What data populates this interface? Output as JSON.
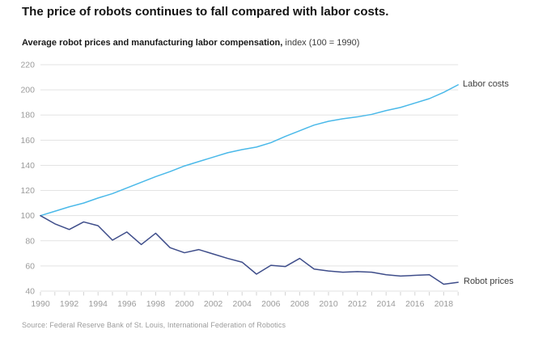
{
  "header": {
    "title": "The price of robots continues to fall compared with labor costs.",
    "subtitle_bold": "Average robot prices and manufacturing labor compensation,",
    "subtitle_regular": " index (100 = 1990)"
  },
  "chart_data": {
    "type": "line",
    "title": "The price of robots continues to fall compared with labor costs.",
    "subtitle": "Average robot prices and manufacturing labor compensation, index (100 = 1990)",
    "x": [
      1990,
      1991,
      1992,
      1993,
      1994,
      1995,
      1996,
      1997,
      1998,
      1999,
      2000,
      2001,
      2002,
      2003,
      2004,
      2005,
      2006,
      2007,
      2008,
      2009,
      2010,
      2011,
      2012,
      2013,
      2014,
      2015,
      2016,
      2017,
      2018,
      2019
    ],
    "series": [
      {
        "name": "Labor costs",
        "color": "#4ab9e9",
        "values": [
          100,
          103.5,
          107,
          110,
          114,
          117.5,
          122,
          126.5,
          131,
          135,
          139.5,
          143,
          146.5,
          150,
          152.5,
          154.5,
          158,
          163,
          167.5,
          172,
          175,
          177,
          178.5,
          180.5,
          183.5,
          186,
          189.5,
          193,
          198,
          204
        ]
      },
      {
        "name": "Robot prices",
        "color": "#3e4d8a",
        "values": [
          100,
          93.5,
          89,
          95,
          92,
          80.5,
          87,
          77,
          86,
          74.5,
          70.5,
          73,
          69.5,
          66,
          63,
          53.5,
          60.5,
          59.5,
          66,
          57.5,
          56,
          55,
          55.5,
          55,
          53,
          52,
          52.5,
          53,
          45.5,
          47
        ]
      }
    ],
    "ylim": [
      40,
      220
    ],
    "yticks": [
      40,
      60,
      80,
      100,
      120,
      140,
      160,
      180,
      200,
      220
    ],
    "xticks_labeled": [
      1990,
      1992,
      1994,
      1996,
      1998,
      2000,
      2002,
      2004,
      2006,
      2008,
      2010,
      2012,
      2014,
      2016,
      2018
    ],
    "grid": "horizontal",
    "legend_position": "line-end-labels",
    "colors": {
      "grid": "#e3e3e3",
      "tick": "#d2d2d2",
      "axis_text": "#9b9b9b"
    }
  },
  "footer": {
    "source": "Source: Federal Reserve Bank of St. Louis, International Federation of Robotics"
  }
}
